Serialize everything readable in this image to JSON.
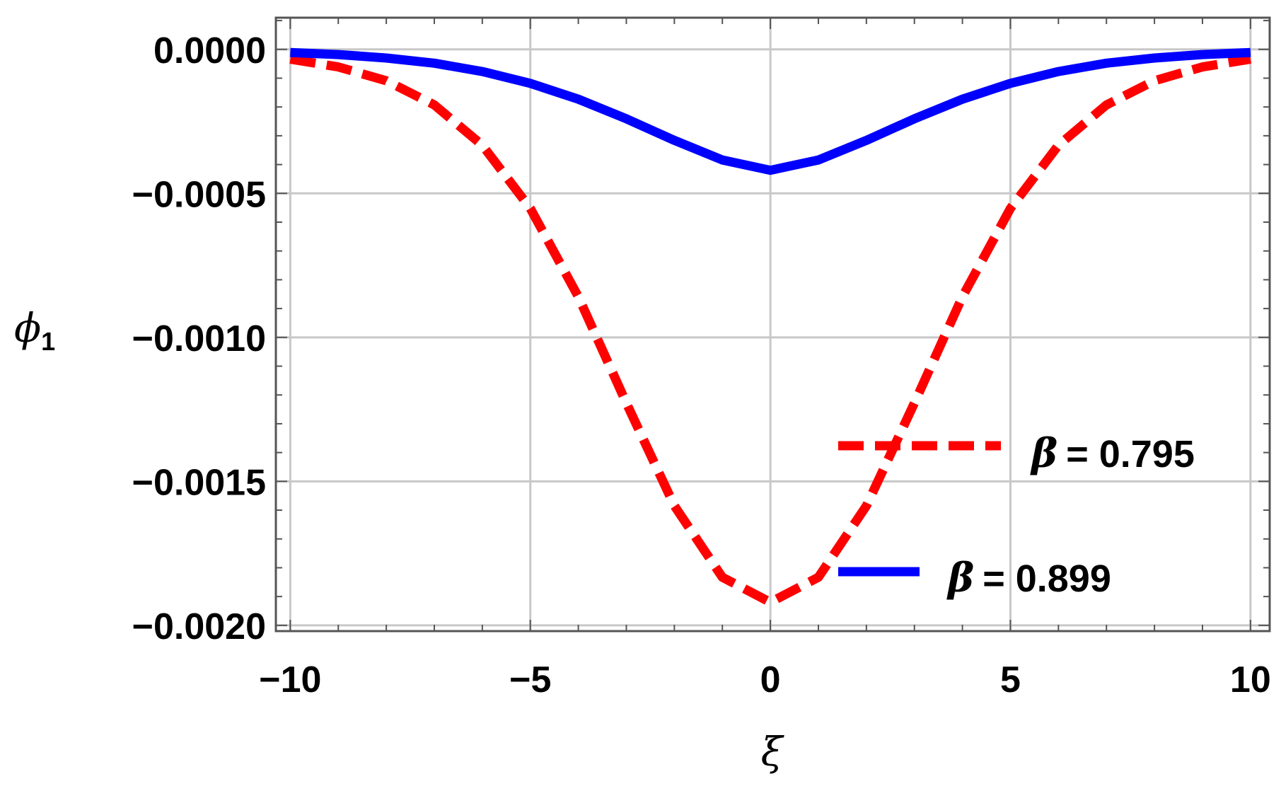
{
  "chart_data": {
    "type": "line",
    "title": "",
    "xlabel": "ξ",
    "ylabel": {
      "symbol": "ϕ",
      "subscript": "1"
    },
    "xlim": [
      -10.3,
      10.4
    ],
    "ylim": [
      -0.00202,
      0.00011
    ],
    "grid": true,
    "legend_position": "bottom-right",
    "x_ticks": [
      {
        "value": -10,
        "label": "−10"
      },
      {
        "value": -5,
        "label": "−5"
      },
      {
        "value": 0,
        "label": "0"
      },
      {
        "value": 5,
        "label": "5"
      },
      {
        "value": 10,
        "label": "10"
      }
    ],
    "y_ticks": [
      {
        "value": 0.0,
        "label": "0.0000"
      },
      {
        "value": -0.0005,
        "label": "−0.0005"
      },
      {
        "value": -0.001,
        "label": "−0.0010"
      },
      {
        "value": -0.0015,
        "label": "−0.0015"
      },
      {
        "value": -0.002,
        "label": "−0.0020"
      }
    ],
    "x": [
      -10,
      -9,
      -8,
      -7,
      -6,
      -5,
      -4,
      -3,
      -2,
      -1,
      0,
      1,
      2,
      3,
      4,
      5,
      6,
      7,
      8,
      9,
      10
    ],
    "series": [
      {
        "name": "β = 0.795",
        "symbol": "β",
        "value_text": "= 0.795",
        "color": "#ff0000",
        "dash": true,
        "values": [
          -3.4e-05,
          -6.1e-05,
          -0.000109,
          -0.000193,
          -0.000333,
          -0.000552,
          -0.000859,
          -0.001228,
          -0.001585,
          -0.001833,
          -0.00192,
          -0.001833,
          -0.001585,
          -0.001228,
          -0.000859,
          -0.000552,
          -0.000333,
          -0.000193,
          -0.000109,
          -6.1e-05,
          -3.4e-05
        ]
      },
      {
        "name": "β = 0.899",
        "symbol": "β",
        "value_text": "= 0.899",
        "color": "#0000ff",
        "dash": false,
        "values": [
          -1.1e-05,
          -1.8e-05,
          -3e-05,
          -4.8e-05,
          -7.7e-05,
          -0.000118,
          -0.000173,
          -0.000241,
          -0.000316,
          -0.000384,
          -0.00042,
          -0.000384,
          -0.000316,
          -0.000241,
          -0.000173,
          -0.000118,
          -7.7e-05,
          -4.8e-05,
          -3e-05,
          -1.8e-05,
          -1.1e-05
        ]
      }
    ]
  }
}
